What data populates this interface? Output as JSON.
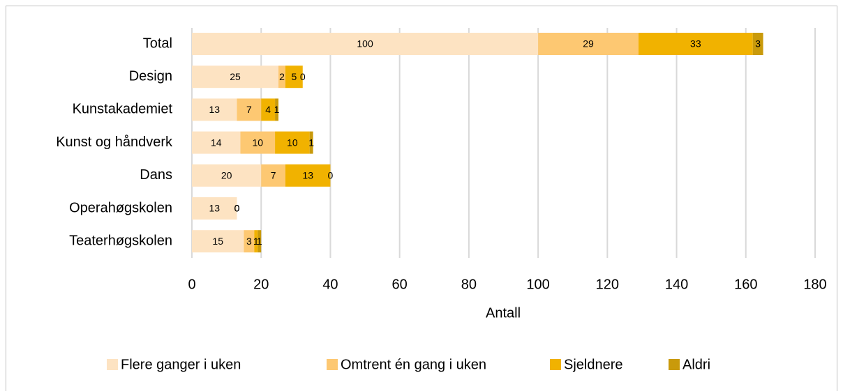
{
  "chart_data": {
    "type": "stacked_barh",
    "categories": [
      "Total",
      "Design",
      "Kunstakademiet",
      "Kunst og håndverk",
      "Dans",
      "Operahøgskolen",
      "Teaterhøgskolen"
    ],
    "series": [
      {
        "name": "Flere ganger i uken",
        "color": "#fde3c2",
        "values": [
          100,
          25,
          13,
          14,
          20,
          13,
          15
        ]
      },
      {
        "name": "Omtrent én gang i uken",
        "color": "#fdc872",
        "values": [
          29,
          2,
          7,
          10,
          7,
          0,
          3
        ]
      },
      {
        "name": "Sjeldnere",
        "color": "#f1b200",
        "values": [
          33,
          5,
          4,
          10,
          13,
          0,
          1
        ]
      },
      {
        "name": "Aldri",
        "color": "#c99a0b",
        "values": [
          3,
          0,
          1,
          1,
          0,
          0,
          1
        ]
      }
    ],
    "xlabel": "Antall",
    "xlim": [
      0,
      180
    ],
    "xticks": [
      0,
      20,
      40,
      60,
      80,
      100,
      120,
      140,
      160,
      180
    ],
    "grid": true,
    "legend": "bottom"
  }
}
